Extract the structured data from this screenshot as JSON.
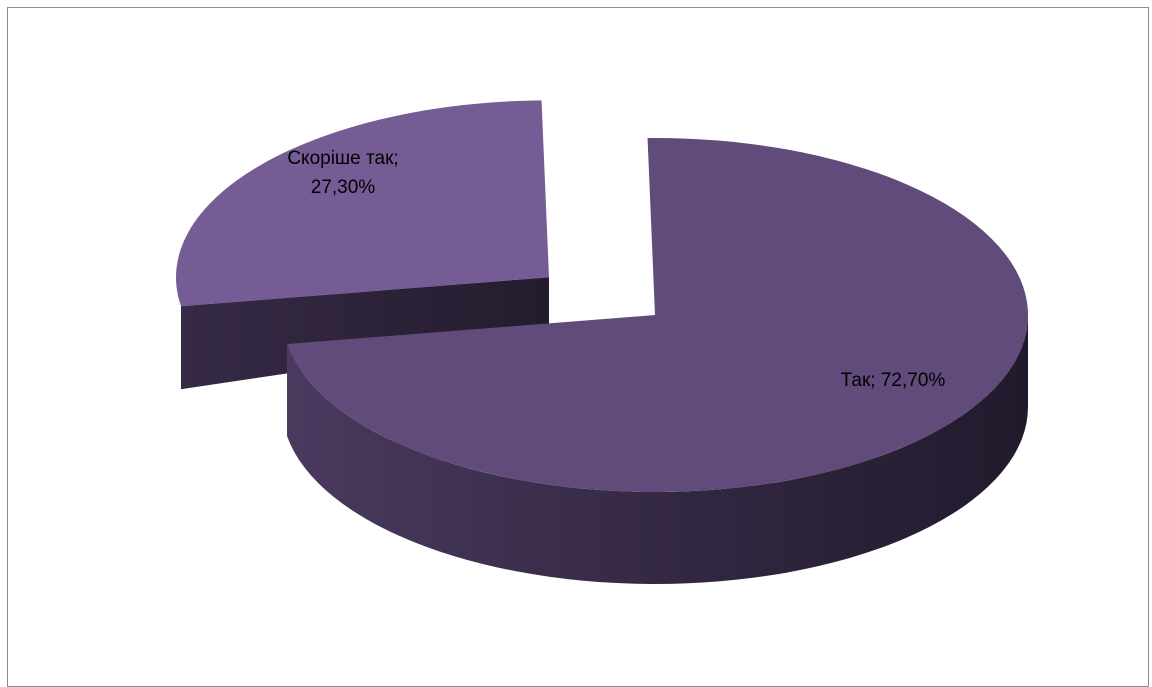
{
  "chart_data": {
    "type": "pie",
    "style": "3d-exploded",
    "slices": [
      {
        "category": "Так",
        "value": 72.7,
        "label_line1": "Так; 72,70%",
        "label_line2": "",
        "top_color": "#604b7a",
        "side_color_light": "#4a3a5f",
        "side_color_dark": "#211a2c",
        "exploded": false
      },
      {
        "category": "Скоріше так",
        "value": 27.3,
        "label_line1": "Скоріше так;",
        "label_line2": "27,30%",
        "top_color": "#755c94",
        "side_color_light": "#362a45",
        "side_color_dark": "#241c2e",
        "exploded": true
      }
    ],
    "title": "",
    "legend": "none",
    "background": "#ffffff",
    "border_color": "#8c8c8c"
  }
}
